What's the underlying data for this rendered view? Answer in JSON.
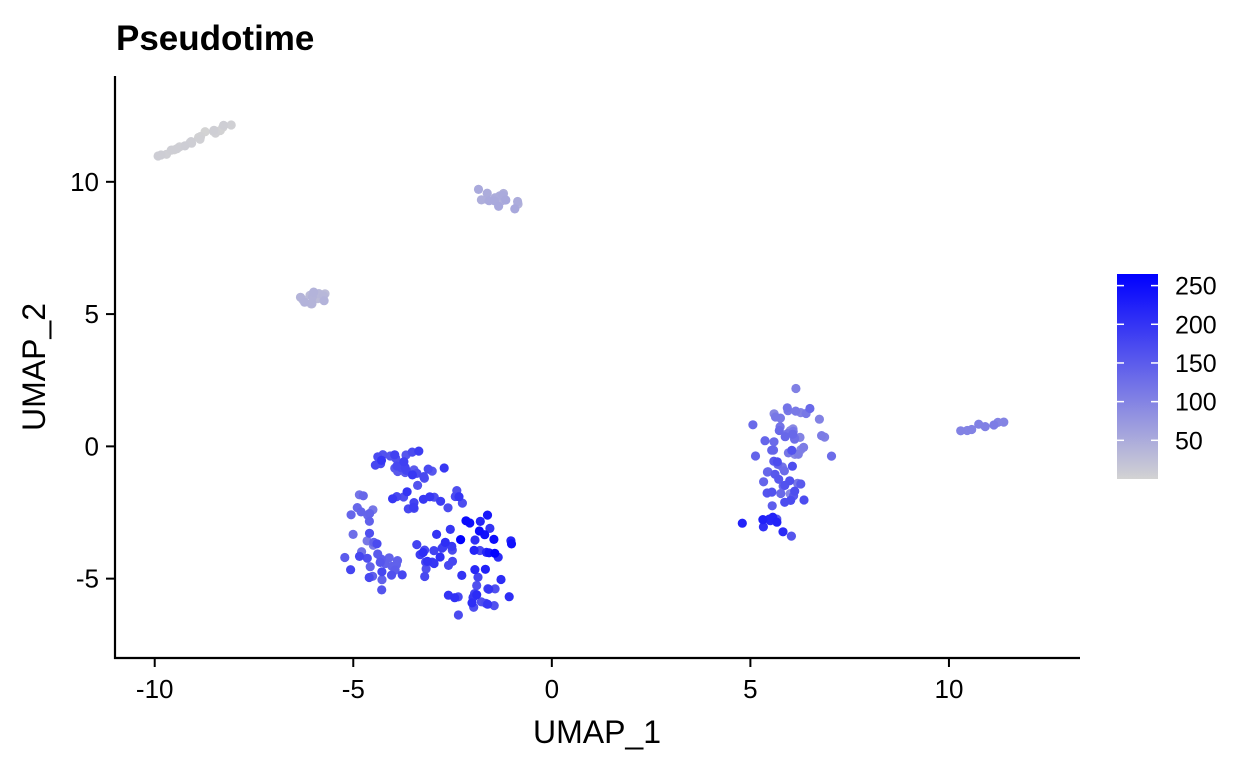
{
  "chart_data": {
    "type": "scatter",
    "title": "Pseudotime",
    "xlabel": "UMAP_1",
    "ylabel": "UMAP_2",
    "xlim": [
      -11,
      13.3
    ],
    "ylim": [
      -8,
      14
    ],
    "xticks": [
      -10,
      -5,
      0,
      5,
      10
    ],
    "yticks": [
      -5,
      0,
      5,
      10
    ],
    "x_tick_labels": [
      "-10",
      "-5",
      "0",
      "5",
      "10"
    ],
    "y_tick_labels": [
      "-5",
      "0",
      "5",
      "10"
    ],
    "grid": false,
    "color_scale": {
      "name": "Pseudotime",
      "low_color": "#d3d3d3",
      "high_color": "#0000ff",
      "min": 0,
      "max": 265,
      "ticks": [
        50,
        100,
        150,
        200,
        250
      ],
      "tick_labels": [
        "50",
        "100",
        "150",
        "200",
        "250"
      ],
      "legend_position": "right"
    },
    "clusters": [
      {
        "cx": -9.0,
        "cy": 11.6,
        "sx": 0.35,
        "sy": 0.3,
        "n": 22,
        "pmin": 0,
        "pmax": 8,
        "shape": "line",
        "angle": 35
      },
      {
        "cx": -6.0,
        "cy": 5.6,
        "sx": 0.18,
        "sy": 0.18,
        "n": 15,
        "pmin": 25,
        "pmax": 40
      },
      {
        "cx": -1.3,
        "cy": 9.3,
        "sx": 0.35,
        "sy": 0.18,
        "n": 16,
        "pmin": 40,
        "pmax": 55
      },
      {
        "cx": 10.85,
        "cy": 0.75,
        "sx": 0.2,
        "sy": 0.07,
        "n": 8,
        "pmin": 95,
        "pmax": 110,
        "shape": "line",
        "angle": 20
      },
      {
        "cx": 6.1,
        "cy": 0.3,
        "sx": 0.4,
        "sy": 0.8,
        "n": 40,
        "pmin": 90,
        "pmax": 140
      },
      {
        "cx": 5.9,
        "cy": -1.8,
        "sx": 0.3,
        "sy": 0.7,
        "n": 25,
        "pmin": 130,
        "pmax": 170
      },
      {
        "cx": 5.4,
        "cy": -3.0,
        "sx": 0.25,
        "sy": 0.2,
        "n": 8,
        "pmin": 200,
        "pmax": 240
      },
      {
        "cx": -3.8,
        "cy": -0.6,
        "sx": 0.55,
        "sy": 0.35,
        "n": 28,
        "pmin": 150,
        "pmax": 200
      },
      {
        "cx": -4.8,
        "cy": -2.8,
        "sx": 0.25,
        "sy": 0.7,
        "n": 14,
        "pmin": 110,
        "pmax": 150
      },
      {
        "cx": -4.2,
        "cy": -4.5,
        "sx": 0.45,
        "sy": 0.45,
        "n": 25,
        "pmin": 140,
        "pmax": 180
      },
      {
        "cx": -3.0,
        "cy": -2.0,
        "sx": 0.6,
        "sy": 0.2,
        "n": 18,
        "pmin": 160,
        "pmax": 200
      },
      {
        "cx": -2.9,
        "cy": -4.0,
        "sx": 0.35,
        "sy": 0.45,
        "n": 20,
        "pmin": 170,
        "pmax": 210
      },
      {
        "cx": -1.8,
        "cy": -3.6,
        "sx": 0.3,
        "sy": 0.55,
        "n": 20,
        "pmin": 200,
        "pmax": 265
      },
      {
        "cx": -1.9,
        "cy": -5.6,
        "sx": 0.4,
        "sy": 0.45,
        "n": 20,
        "pmin": 160,
        "pmax": 210
      }
    ]
  }
}
